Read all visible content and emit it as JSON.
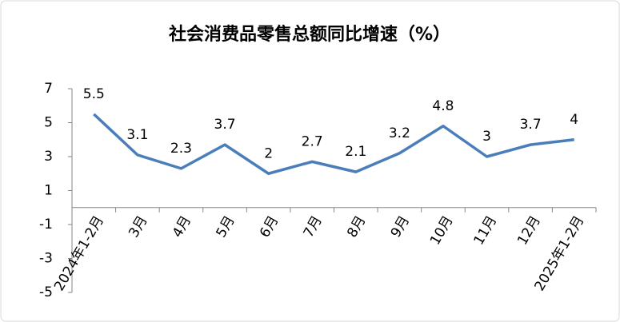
{
  "chart_data": {
    "type": "line",
    "title": "社会消费品零售总额同比增速（%）",
    "categories": [
      "2024年1-2月",
      "3月",
      "4月",
      "5月",
      "6月",
      "7月",
      "8月",
      "9月",
      "10月",
      "11月",
      "12月",
      "2025年1-2月"
    ],
    "values": [
      5.5,
      3.1,
      2.3,
      3.7,
      2,
      2.7,
      2.1,
      3.2,
      4.8,
      3,
      3.7,
      4
    ],
    "color": "#4a7ebb",
    "ylim": [
      -5,
      7
    ],
    "yticks": [
      -5,
      -3,
      -1,
      1,
      3,
      5,
      7
    ],
    "grid": false
  }
}
